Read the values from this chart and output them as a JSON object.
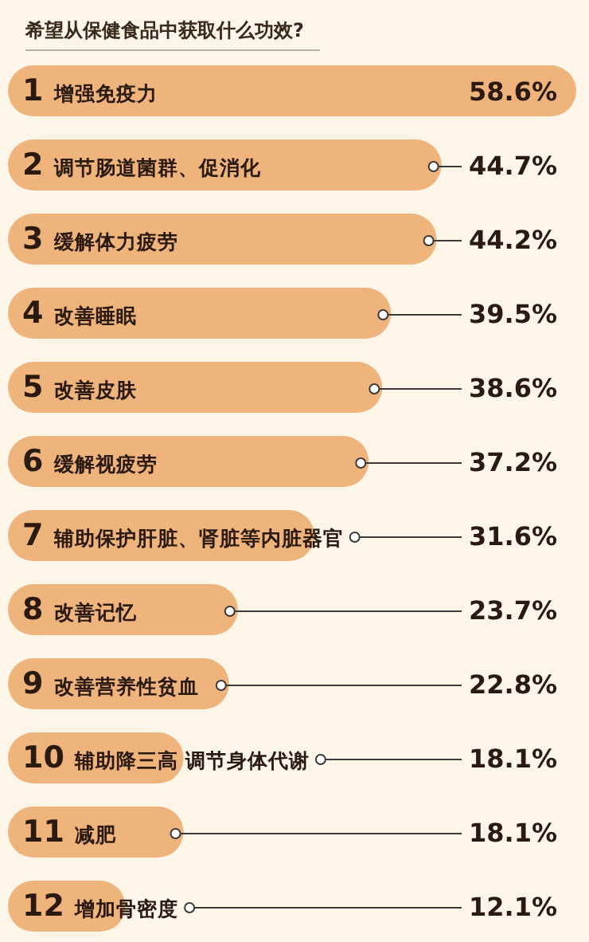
{
  "chart_data": {
    "type": "bar",
    "orientation": "horizontal",
    "title": "希望从保健食品中获取什么功效?",
    "categories": [
      "1 增强免疫力",
      "2 调节肠道菌群、促消化",
      "3 缓解体力疲劳",
      "4 改善睡眠",
      "5 改善皮肤",
      "6 缓解视疲劳",
      "7 辅助保护肝脏、肾脏等内脏器官",
      "8 改善记忆",
      "9 改善营养性贫血",
      "10 辅助降三高 调节身体代谢",
      "11 减肥",
      "12 增加骨密度"
    ],
    "values": [
      58.6,
      44.7,
      44.2,
      39.5,
      38.6,
      37.2,
      31.6,
      23.7,
      22.8,
      18.1,
      18.1,
      12.1
    ],
    "value_labels": [
      "58.6%",
      "44.7%",
      "44.2%",
      "39.5%",
      "38.6%",
      "37.2%",
      "31.6%",
      "23.7%",
      "22.8%",
      "18.1%",
      "18.1%",
      "12.1%"
    ],
    "color": "#efb37c"
  }
}
